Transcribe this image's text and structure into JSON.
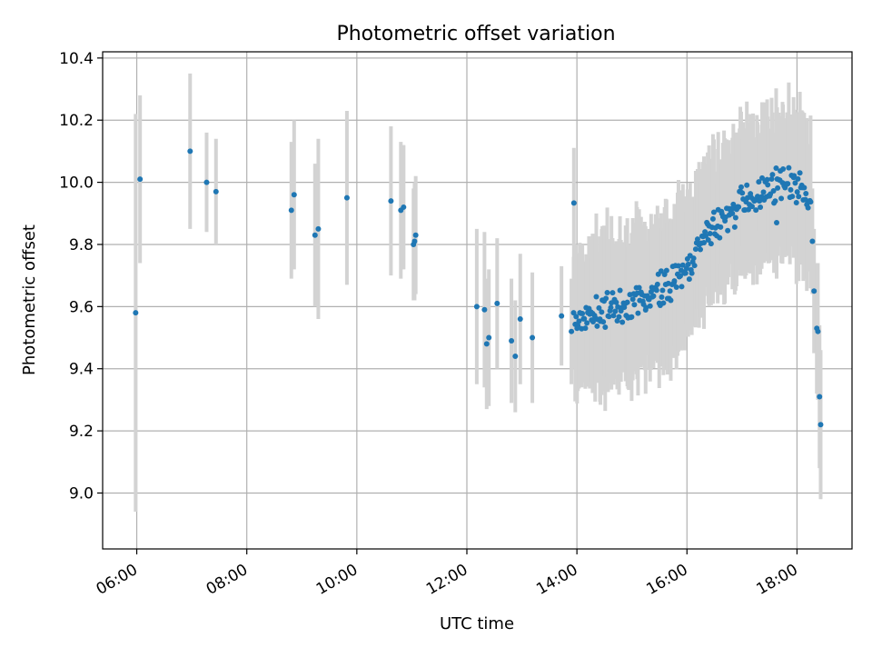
{
  "chart_data": {
    "type": "scatter",
    "title": "Photometric offset variation",
    "xlabel": "UTC time",
    "ylabel": "Photometric offset",
    "xlim": [
      5.38,
      19.0
    ],
    "ylim": [
      8.82,
      10.42
    ],
    "x_ticks": [
      6,
      8,
      10,
      12,
      14,
      16,
      18
    ],
    "x_tick_labels": [
      "06:00",
      "08:00",
      "10:00",
      "12:00",
      "14:00",
      "16:00",
      "18:00"
    ],
    "y_ticks": [
      9.0,
      9.2,
      9.4,
      9.6,
      9.8,
      10.0,
      10.2,
      10.4
    ],
    "y_tick_labels": [
      "9.0",
      "9.2",
      "9.4",
      "9.6",
      "9.8",
      "10.0",
      "10.2",
      "10.4"
    ],
    "grid": true,
    "colors": {
      "points": "#1f77b4",
      "error_bars": "#d3d3d3",
      "grid": "#b0b0b0"
    },
    "sparse_points": [
      {
        "x": 5.98,
        "y": 9.58,
        "yerr": 0.64
      },
      {
        "x": 6.06,
        "y": 10.01,
        "yerr": 0.27
      },
      {
        "x": 6.97,
        "y": 10.1,
        "yerr": 0.25
      },
      {
        "x": 7.27,
        "y": 10.0,
        "yerr": 0.16
      },
      {
        "x": 7.44,
        "y": 9.97,
        "yerr": 0.17
      },
      {
        "x": 8.81,
        "y": 9.91,
        "yerr": 0.22
      },
      {
        "x": 8.86,
        "y": 9.96,
        "yerr": 0.24
      },
      {
        "x": 9.24,
        "y": 9.83,
        "yerr": 0.23
      },
      {
        "x": 9.3,
        "y": 9.85,
        "yerr": 0.29
      },
      {
        "x": 9.82,
        "y": 9.95,
        "yerr": 0.28
      },
      {
        "x": 10.62,
        "y": 9.94,
        "yerr": 0.24
      },
      {
        "x": 10.8,
        "y": 9.91,
        "yerr": 0.22
      },
      {
        "x": 10.85,
        "y": 9.92,
        "yerr": 0.2
      },
      {
        "x": 11.03,
        "y": 9.8,
        "yerr": 0.18
      },
      {
        "x": 11.05,
        "y": 9.81,
        "yerr": 0.19
      },
      {
        "x": 11.07,
        "y": 9.83,
        "yerr": 0.19
      },
      {
        "x": 12.18,
        "y": 9.6,
        "yerr": 0.25
      },
      {
        "x": 12.32,
        "y": 9.59,
        "yerr": 0.25
      },
      {
        "x": 12.36,
        "y": 9.48,
        "yerr": 0.21
      },
      {
        "x": 12.4,
        "y": 9.5,
        "yerr": 0.22
      },
      {
        "x": 12.55,
        "y": 9.61,
        "yerr": 0.21
      },
      {
        "x": 12.81,
        "y": 9.49,
        "yerr": 0.2
      },
      {
        "x": 12.88,
        "y": 9.44,
        "yerr": 0.18
      },
      {
        "x": 12.97,
        "y": 9.56,
        "yerr": 0.21
      },
      {
        "x": 13.19,
        "y": 9.5,
        "yerr": 0.21
      },
      {
        "x": 13.72,
        "y": 9.57,
        "yerr": 0.16
      },
      {
        "x": 13.9,
        "y": 9.52,
        "yerr": 0.17
      },
      {
        "x": 13.94,
        "y": 9.58,
        "yerr": 0.18
      },
      {
        "x": 17.63,
        "y": 9.87,
        "yerr": 0.18
      },
      {
        "x": 18.28,
        "y": 9.81,
        "yerr": 0.17
      },
      {
        "x": 18.31,
        "y": 9.65,
        "yerr": 0.2
      },
      {
        "x": 18.36,
        "y": 9.53,
        "yerr": 0.21
      },
      {
        "x": 18.38,
        "y": 9.52,
        "yerr": 0.22
      },
      {
        "x": 18.41,
        "y": 9.31,
        "yerr": 0.23
      },
      {
        "x": 18.43,
        "y": 9.22,
        "yerr": 0.24
      }
    ],
    "dense_series": {
      "x_start": 13.95,
      "x_end": 18.25,
      "count": 260,
      "trend": [
        [
          13.95,
          9.55
        ],
        [
          14.3,
          9.58
        ],
        [
          14.8,
          9.6
        ],
        [
          15.2,
          9.62
        ],
        [
          15.6,
          9.67
        ],
        [
          15.9,
          9.7
        ],
        [
          16.1,
          9.74
        ],
        [
          16.3,
          9.82
        ],
        [
          16.6,
          9.87
        ],
        [
          17.0,
          9.93
        ],
        [
          17.4,
          9.98
        ],
        [
          17.8,
          10.0
        ],
        [
          18.1,
          9.98
        ],
        [
          18.25,
          9.92
        ]
      ],
      "scatter": 0.04,
      "yerr_range": [
        0.15,
        0.28
      ],
      "seed": 7
    }
  }
}
